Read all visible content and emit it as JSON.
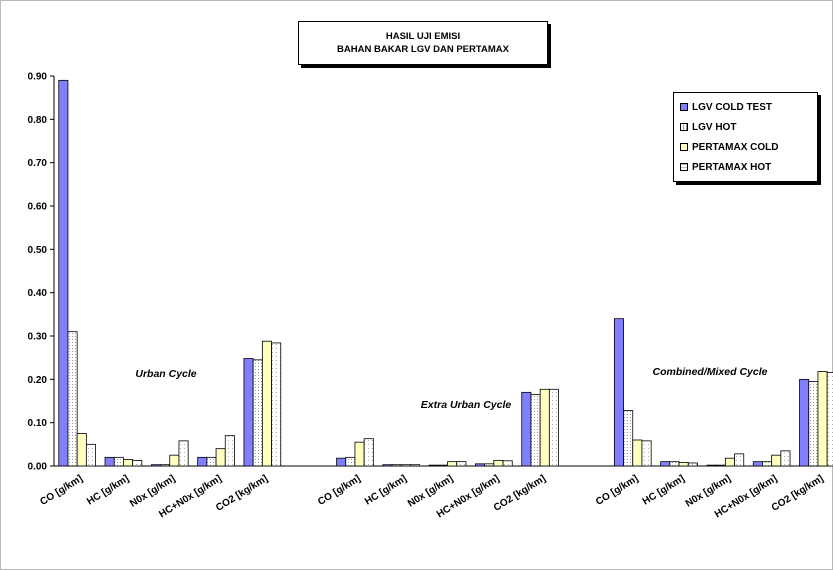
{
  "chart_data": {
    "type": "bar",
    "title": "HASIL UJI EMISI",
    "subtitle": "BAHAN BAKAR LGV DAN PERTAMAX",
    "xlabel": "",
    "ylabel": "",
    "ylim": [
      0,
      0.9
    ],
    "ytick_step": 0.1,
    "yticks": [
      "0.00",
      "0.10",
      "0.20",
      "0.30",
      "0.40",
      "0.50",
      "0.60",
      "0.70",
      "0.80",
      "0.90"
    ],
    "grid": false,
    "legend_position": "top-right",
    "series": [
      {
        "name": "LGV COLD TEST",
        "color": "#8080ff"
      },
      {
        "name": "LGV HOT",
        "color": "#ffffff"
      },
      {
        "name": "PERTAMAX COLD",
        "color": "#ffffc0"
      },
      {
        "name": "PERTAMAX HOT",
        "color": "#ffffff"
      }
    ],
    "groups": [
      {
        "name": "Urban Cycle",
        "categories": [
          "CO [g/km]",
          "HC [g/km]",
          "N0x [g/km]",
          "HC+N0x [g/km]",
          "CO2 [kg/km]"
        ],
        "values": [
          [
            0.89,
            0.31,
            0.075,
            0.05
          ],
          [
            0.02,
            0.02,
            0.015,
            0.013
          ],
          [
            0.003,
            0.003,
            0.025,
            0.058
          ],
          [
            0.02,
            0.02,
            0.04,
            0.07
          ],
          [
            0.248,
            0.245,
            0.288,
            0.284
          ]
        ]
      },
      {
        "name": "Extra Urban Cycle",
        "categories": [
          "CO [g/km]",
          "HC [g/km]",
          "N0x [g/km]",
          "HC+N0x [g/km]",
          "CO2 [kg/km]"
        ],
        "values": [
          [
            0.018,
            0.02,
            0.055,
            0.063
          ],
          [
            0.003,
            0.003,
            0.003,
            0.003
          ],
          [
            0.002,
            0.002,
            0.01,
            0.01
          ],
          [
            0.005,
            0.005,
            0.013,
            0.012
          ],
          [
            0.17,
            0.165,
            0.177,
            0.177
          ]
        ]
      },
      {
        "name": "Combined/Mixed Cycle",
        "categories": [
          "CO [g/km]",
          "HC [g/km]",
          "N0x [g/km]",
          "HC+N0x [g/km]",
          "CO2 [kg/km]"
        ],
        "values": [
          [
            0.34,
            0.128,
            0.06,
            0.058
          ],
          [
            0.01,
            0.01,
            0.008,
            0.007
          ],
          [
            0.002,
            0.002,
            0.018,
            0.028
          ],
          [
            0.01,
            0.01,
            0.025,
            0.035
          ],
          [
            0.2,
            0.195,
            0.218,
            0.216
          ]
        ]
      }
    ]
  }
}
